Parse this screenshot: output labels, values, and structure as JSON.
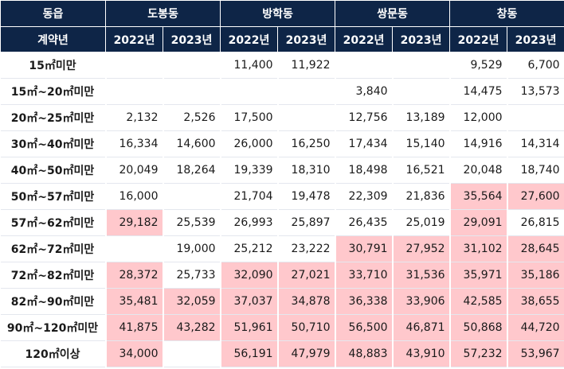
{
  "header": {
    "label_top": "동읍",
    "label_bottom": "계약년",
    "districts": [
      "도봉동",
      "방학동",
      "쌍문동",
      "창동"
    ],
    "years": [
      "2022년",
      "2023년"
    ]
  },
  "colors": {
    "header_bg": "#0e2547",
    "highlight": "#ffc8cc"
  },
  "rows": [
    {
      "label": "15㎡미만",
      "cells": [
        {
          "v": ""
        },
        {
          "v": ""
        },
        {
          "v": "11,400"
        },
        {
          "v": "11,922"
        },
        {
          "v": ""
        },
        {
          "v": ""
        },
        {
          "v": "9,529"
        },
        {
          "v": "6,700"
        }
      ]
    },
    {
      "label": "15㎡~20㎡미만",
      "cells": [
        {
          "v": ""
        },
        {
          "v": ""
        },
        {
          "v": ""
        },
        {
          "v": ""
        },
        {
          "v": "3,840"
        },
        {
          "v": ""
        },
        {
          "v": "14,475"
        },
        {
          "v": "13,573"
        }
      ]
    },
    {
      "label": "20㎡~25㎡미만",
      "cells": [
        {
          "v": "2,132"
        },
        {
          "v": "2,526"
        },
        {
          "v": "17,500"
        },
        {
          "v": ""
        },
        {
          "v": "12,756"
        },
        {
          "v": "13,189"
        },
        {
          "v": "12,000"
        },
        {
          "v": ""
        }
      ]
    },
    {
      "label": "30㎡~40㎡미만",
      "cells": [
        {
          "v": "16,334"
        },
        {
          "v": "14,600"
        },
        {
          "v": "26,000"
        },
        {
          "v": "16,250"
        },
        {
          "v": "17,434"
        },
        {
          "v": "15,140"
        },
        {
          "v": "14,916"
        },
        {
          "v": "14,314"
        }
      ]
    },
    {
      "label": "40㎡~50㎡미만",
      "cells": [
        {
          "v": "20,049"
        },
        {
          "v": "18,264"
        },
        {
          "v": "19,339"
        },
        {
          "v": "18,310"
        },
        {
          "v": "18,498"
        },
        {
          "v": "16,521"
        },
        {
          "v": "20,048"
        },
        {
          "v": "18,740"
        }
      ]
    },
    {
      "label": "50㎡~57㎡미만",
      "cells": [
        {
          "v": "16,000"
        },
        {
          "v": ""
        },
        {
          "v": "21,704"
        },
        {
          "v": "19,478"
        },
        {
          "v": "22,309"
        },
        {
          "v": "21,836"
        },
        {
          "v": "35,564",
          "hl": true
        },
        {
          "v": "27,600",
          "hl": true
        }
      ]
    },
    {
      "label": "57㎡~62㎡미만",
      "cells": [
        {
          "v": "29,182",
          "hl": true
        },
        {
          "v": "25,539"
        },
        {
          "v": "26,993"
        },
        {
          "v": "25,897"
        },
        {
          "v": "26,435"
        },
        {
          "v": "25,019"
        },
        {
          "v": "29,091",
          "hl": true
        },
        {
          "v": "26,815"
        }
      ]
    },
    {
      "label": "62㎡~72㎡미만",
      "cells": [
        {
          "v": ""
        },
        {
          "v": "19,000"
        },
        {
          "v": "25,212"
        },
        {
          "v": "23,222"
        },
        {
          "v": "30,791",
          "hl": true
        },
        {
          "v": "27,952",
          "hl": true
        },
        {
          "v": "31,102",
          "hl": true
        },
        {
          "v": "28,645",
          "hl": true
        }
      ]
    },
    {
      "label": "72㎡~82㎡미만",
      "cells": [
        {
          "v": "28,372",
          "hl": true
        },
        {
          "v": "25,733"
        },
        {
          "v": "32,090",
          "hl": true
        },
        {
          "v": "27,021",
          "hl": true
        },
        {
          "v": "33,710",
          "hl": true
        },
        {
          "v": "31,536",
          "hl": true
        },
        {
          "v": "35,971",
          "hl": true
        },
        {
          "v": "35,186",
          "hl": true
        }
      ]
    },
    {
      "label": "82㎡~90㎡미만",
      "cells": [
        {
          "v": "35,481",
          "hl": true
        },
        {
          "v": "32,059",
          "hl": true
        },
        {
          "v": "37,037",
          "hl": true
        },
        {
          "v": "34,878",
          "hl": true
        },
        {
          "v": "36,338",
          "hl": true
        },
        {
          "v": "33,906",
          "hl": true
        },
        {
          "v": "42,585",
          "hl": true
        },
        {
          "v": "38,655",
          "hl": true
        }
      ]
    },
    {
      "label": "90㎡~120㎡미만",
      "cells": [
        {
          "v": "41,875",
          "hl": true
        },
        {
          "v": "43,282",
          "hl": true
        },
        {
          "v": "51,961",
          "hl": true
        },
        {
          "v": "50,710",
          "hl": true
        },
        {
          "v": "56,500",
          "hl": true
        },
        {
          "v": "46,871",
          "hl": true
        },
        {
          "v": "50,868",
          "hl": true
        },
        {
          "v": "44,720",
          "hl": true
        }
      ]
    },
    {
      "label": "120㎡이상",
      "cells": [
        {
          "v": "34,000",
          "hl": true
        },
        {
          "v": ""
        },
        {
          "v": "56,191",
          "hl": true
        },
        {
          "v": "47,979",
          "hl": true
        },
        {
          "v": "48,883",
          "hl": true
        },
        {
          "v": "43,910",
          "hl": true
        },
        {
          "v": "57,232",
          "hl": true
        },
        {
          "v": "53,967",
          "hl": true
        }
      ]
    }
  ]
}
